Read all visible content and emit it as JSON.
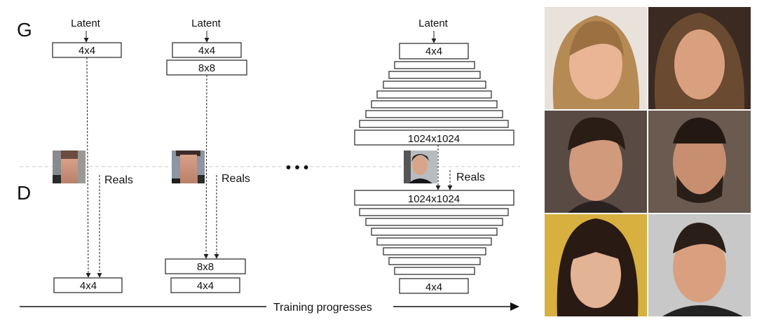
{
  "labels": {
    "generator": "G",
    "discriminator": "D",
    "latent": "Latent",
    "reals": "Reals",
    "ellipsis": "• • •",
    "timeline": "Training progresses"
  },
  "stages": [
    {
      "generator_layers": [
        "4x4"
      ],
      "discriminator_layers": [
        "4x4"
      ]
    },
    {
      "generator_layers": [
        "4x4",
        "8x8"
      ],
      "discriminator_layers": [
        "8x8",
        "4x4"
      ]
    },
    {
      "generator_layers": [
        "4x4",
        "",
        "",
        "",
        "",
        "",
        "",
        "",
        "1024x1024"
      ],
      "discriminator_layers": [
        "1024x1024",
        "",
        "",
        "",
        "",
        "",
        "",
        "",
        "4x4"
      ]
    }
  ],
  "sample_faces": [
    "face-1",
    "face-2",
    "face-3",
    "face-4",
    "face-5",
    "face-6"
  ],
  "colors": {
    "line": "#222222",
    "divider": "#c8c8c8"
  }
}
